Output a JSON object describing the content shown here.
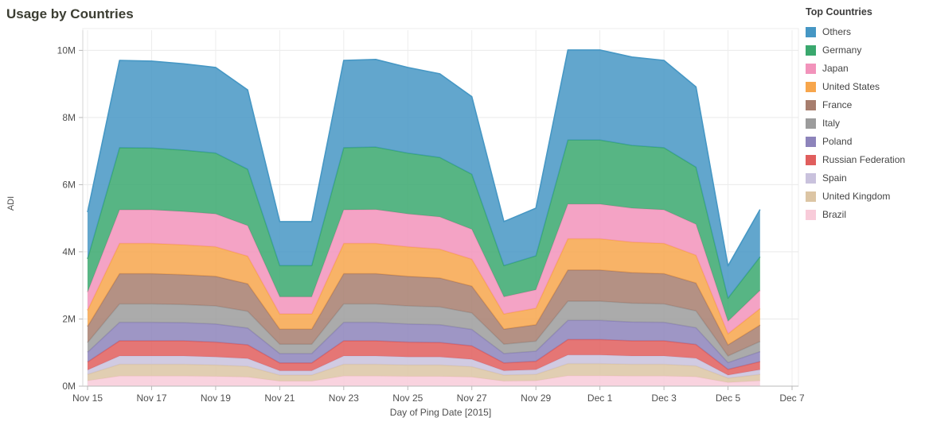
{
  "title": "Usage by Countries",
  "legend": {
    "title": "Top Countries",
    "position": "right"
  },
  "chart_data": {
    "type": "area",
    "stacked": true,
    "title": "Usage by Countries",
    "xlabel": "Day of Ping Date [2015]",
    "ylabel": "ADI",
    "unit": "millions",
    "ylim": [
      0,
      10.6
    ],
    "grid": true,
    "y_ticks": [
      "0M",
      "2M",
      "4M",
      "6M",
      "8M",
      "10M"
    ],
    "y_tick_values": [
      0,
      2,
      4,
      6,
      8,
      10
    ],
    "x_ticks": [
      "Nov 15",
      "Nov 17",
      "Nov 19",
      "Nov 21",
      "Nov 23",
      "Nov 25",
      "Nov 27",
      "Nov 29",
      "Dec 1",
      "Dec 3",
      "Dec 5",
      "Dec 7"
    ],
    "x_tick_days": [
      0,
      2,
      4,
      6,
      8,
      10,
      12,
      14,
      16,
      18,
      20,
      22
    ],
    "x": [
      "Nov 15",
      "Nov 16",
      "Nov 17",
      "Nov 18",
      "Nov 19",
      "Nov 20",
      "Nov 21",
      "Nov 22",
      "Nov 23",
      "Nov 24",
      "Nov 25",
      "Nov 26",
      "Nov 27",
      "Nov 28",
      "Nov 29",
      "Nov 30",
      "Dec 1",
      "Dec 2",
      "Dec 3",
      "Dec 4",
      "Dec 5",
      "Dec 6"
    ],
    "stack_order": [
      "Brazil",
      "United Kingdom",
      "Spain",
      "Russian Federation",
      "Poland",
      "Italy",
      "France",
      "United States",
      "Japan",
      "Germany",
      "Others"
    ],
    "series": [
      {
        "name": "Others",
        "color": "#4697c4",
        "values": [
          1.39,
          2.6,
          2.59,
          2.57,
          2.55,
          2.36,
          1.31,
          1.31,
          2.6,
          2.61,
          2.55,
          2.49,
          2.31,
          1.31,
          1.42,
          2.68,
          2.68,
          2.63,
          2.6,
          2.39,
          0.96,
          1.41
        ]
      },
      {
        "name": "Germany",
        "color": "#3aa86e",
        "values": [
          0.99,
          1.85,
          1.84,
          1.83,
          1.81,
          1.68,
          0.93,
          0.93,
          1.85,
          1.86,
          1.81,
          1.77,
          1.64,
          0.93,
          1.01,
          1.91,
          1.91,
          1.87,
          1.85,
          1.7,
          0.69,
          1.0
        ]
      },
      {
        "name": "Japan",
        "color": "#f293bb",
        "values": [
          0.54,
          1.0,
          1.0,
          0.99,
          0.98,
          0.91,
          0.51,
          0.51,
          1.0,
          1.01,
          0.98,
          0.96,
          0.89,
          0.51,
          0.55,
          1.03,
          1.03,
          1.01,
          1.0,
          0.92,
          0.37,
          0.54
        ]
      },
      {
        "name": "United States",
        "color": "#f7a64c",
        "values": [
          0.48,
          0.9,
          0.9,
          0.89,
          0.88,
          0.82,
          0.45,
          0.45,
          0.9,
          0.9,
          0.88,
          0.86,
          0.8,
          0.45,
          0.49,
          0.93,
          0.93,
          0.91,
          0.9,
          0.83,
          0.33,
          0.49
        ]
      },
      {
        "name": "France",
        "color": "#a77e6e",
        "values": [
          0.48,
          0.9,
          0.9,
          0.89,
          0.88,
          0.82,
          0.45,
          0.45,
          0.9,
          0.9,
          0.88,
          0.86,
          0.8,
          0.45,
          0.49,
          0.93,
          0.93,
          0.91,
          0.9,
          0.83,
          0.33,
          0.49
        ]
      },
      {
        "name": "Italy",
        "color": "#9c9c9c",
        "values": [
          0.29,
          0.55,
          0.55,
          0.54,
          0.54,
          0.5,
          0.28,
          0.28,
          0.55,
          0.55,
          0.54,
          0.53,
          0.49,
          0.28,
          0.3,
          0.57,
          0.57,
          0.56,
          0.55,
          0.5,
          0.2,
          0.3
        ]
      },
      {
        "name": "Poland",
        "color": "#8d84bb",
        "values": [
          0.29,
          0.55,
          0.55,
          0.54,
          0.54,
          0.5,
          0.28,
          0.28,
          0.55,
          0.55,
          0.54,
          0.53,
          0.49,
          0.28,
          0.3,
          0.57,
          0.57,
          0.56,
          0.55,
          0.5,
          0.2,
          0.3
        ]
      },
      {
        "name": "Russian Federation",
        "color": "#e05e5d",
        "values": [
          0.24,
          0.45,
          0.45,
          0.45,
          0.44,
          0.41,
          0.23,
          0.23,
          0.45,
          0.45,
          0.44,
          0.43,
          0.4,
          0.23,
          0.25,
          0.46,
          0.46,
          0.45,
          0.45,
          0.41,
          0.17,
          0.24
        ]
      },
      {
        "name": "Spain",
        "color": "#c9c2dd",
        "values": [
          0.13,
          0.25,
          0.25,
          0.25,
          0.24,
          0.23,
          0.13,
          0.13,
          0.25,
          0.25,
          0.24,
          0.24,
          0.22,
          0.13,
          0.14,
          0.26,
          0.26,
          0.25,
          0.25,
          0.23,
          0.09,
          0.14
        ]
      },
      {
        "name": "United Kingdom",
        "color": "#dcc5a4",
        "values": [
          0.19,
          0.35,
          0.35,
          0.35,
          0.34,
          0.32,
          0.18,
          0.18,
          0.35,
          0.35,
          0.34,
          0.34,
          0.31,
          0.18,
          0.19,
          0.36,
          0.36,
          0.35,
          0.35,
          0.32,
          0.13,
          0.19
        ]
      },
      {
        "name": "Brazil",
        "color": "#f8cbd9",
        "values": [
          0.16,
          0.3,
          0.3,
          0.3,
          0.29,
          0.27,
          0.15,
          0.15,
          0.3,
          0.3,
          0.29,
          0.29,
          0.27,
          0.15,
          0.16,
          0.31,
          0.31,
          0.3,
          0.3,
          0.28,
          0.11,
          0.16
        ]
      }
    ]
  }
}
